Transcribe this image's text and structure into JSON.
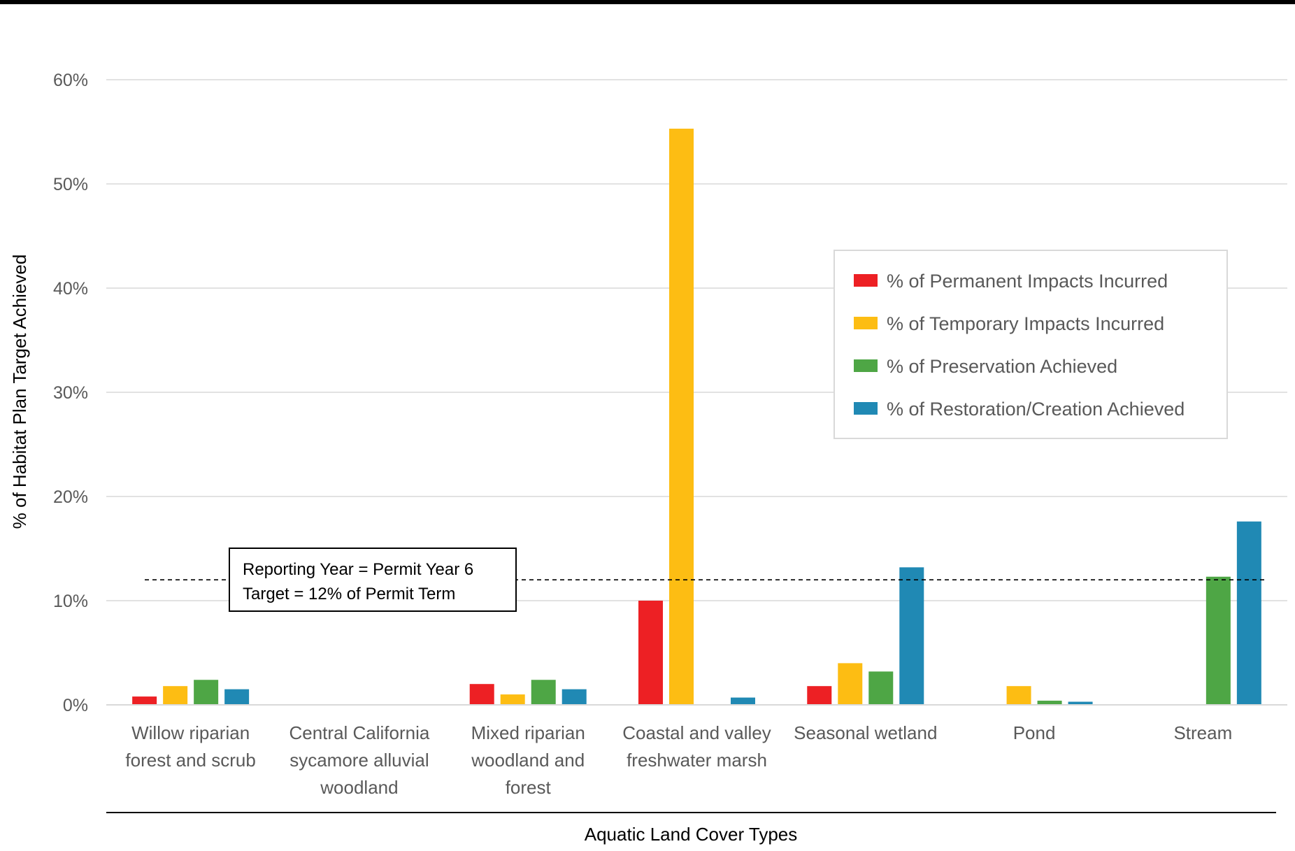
{
  "chart_data": {
    "type": "bar",
    "xlabel": "Aquatic Land Cover Types",
    "ylabel": "% of Habitat Plan Target Achieved",
    "ylim": [
      0,
      60
    ],
    "yticks": [
      0,
      10,
      20,
      30,
      40,
      50,
      60
    ],
    "ytick_labels": [
      "0%",
      "10%",
      "20%",
      "30%",
      "40%",
      "50%",
      "60%"
    ],
    "grid": true,
    "legend_position": "right",
    "categories": [
      [
        "Willow riparian",
        "forest and scrub"
      ],
      [
        "Central California",
        "sycamore alluvial",
        "woodland"
      ],
      [
        "Mixed riparian",
        "woodland and",
        "forest"
      ],
      [
        "Coastal and valley",
        "freshwater marsh"
      ],
      [
        "Seasonal wetland"
      ],
      [
        "Pond"
      ],
      [
        "Stream"
      ]
    ],
    "series": [
      {
        "name": "% of Permanent Impacts Incurred",
        "color": "#ED2024",
        "values": [
          0.8,
          0,
          2.0,
          10.0,
          1.8,
          0,
          0
        ]
      },
      {
        "name": "% of Temporary Impacts Incurred",
        "color": "#FDBD13",
        "values": [
          1.8,
          0,
          1.0,
          55.3,
          4.0,
          1.8,
          0
        ]
      },
      {
        "name": "% of Preservation Achieved",
        "color": "#4EA645",
        "values": [
          2.4,
          0,
          2.4,
          0,
          3.2,
          0.4,
          12.3
        ]
      },
      {
        "name": "% of Restoration/Creation Achieved",
        "color": "#2089B4",
        "values": [
          1.5,
          0,
          1.5,
          0.7,
          13.2,
          0.3,
          17.6
        ]
      }
    ],
    "reference_line": {
      "value": 12,
      "style": "dashed",
      "label_lines": [
        "Reporting Year = Permit Year 6",
        "Target = 12% of Permit Term"
      ]
    }
  }
}
